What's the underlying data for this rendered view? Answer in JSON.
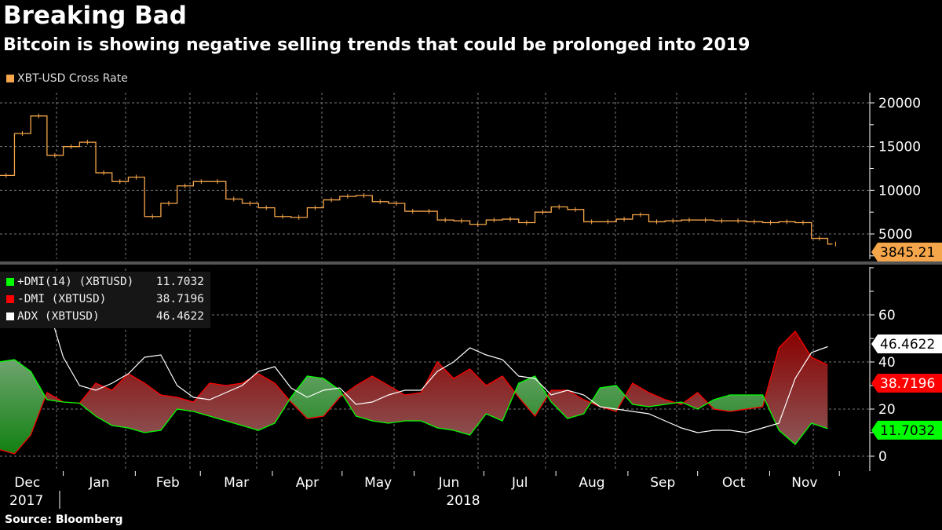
{
  "title": "Breaking Bad",
  "subtitle": "Bitcoin is showing negative selling trends that could be prolonged into 2019",
  "source": "Source: Bloomberg",
  "colors": {
    "price": "#f5a54a",
    "plus_dmi": "#00ff00",
    "minus_dmi": "#ff0000",
    "adx": "#ffffff",
    "background": "#000000"
  },
  "chart_data": [
    {
      "type": "line",
      "legend": "XBT-USD Cross Rate",
      "ylim": [
        3000,
        21000
      ],
      "yticks": [
        5000,
        10000,
        15000,
        20000
      ],
      "last_value_label": "3845.21",
      "grid": true,
      "x": [
        "2017-12-04",
        "2017-12-11",
        "2017-12-18",
        "2017-12-25",
        "2018-01-01",
        "2018-01-08",
        "2018-01-15",
        "2018-01-22",
        "2018-01-29",
        "2018-02-05",
        "2018-02-12",
        "2018-02-19",
        "2018-02-26",
        "2018-03-05",
        "2018-03-12",
        "2018-03-19",
        "2018-03-26",
        "2018-04-02",
        "2018-04-09",
        "2018-04-16",
        "2018-04-23",
        "2018-04-30",
        "2018-05-07",
        "2018-05-14",
        "2018-05-21",
        "2018-05-28",
        "2018-06-04",
        "2018-06-11",
        "2018-06-18",
        "2018-06-25",
        "2018-07-02",
        "2018-07-09",
        "2018-07-16",
        "2018-07-23",
        "2018-07-30",
        "2018-08-06",
        "2018-08-13",
        "2018-08-20",
        "2018-08-27",
        "2018-09-03",
        "2018-09-10",
        "2018-09-17",
        "2018-09-24",
        "2018-10-01",
        "2018-10-08",
        "2018-10-15",
        "2018-10-22",
        "2018-10-29",
        "2018-11-05",
        "2018-11-12",
        "2018-11-19",
        "2018-11-26"
      ],
      "values": [
        11700,
        16500,
        18500,
        14000,
        15000,
        15500,
        12000,
        11000,
        11500,
        7000,
        8500,
        10500,
        11000,
        11000,
        9000,
        8500,
        8000,
        7000,
        6900,
        8000,
        8900,
        9300,
        9400,
        8700,
        8500,
        7600,
        7600,
        6600,
        6500,
        6100,
        6600,
        6700,
        6300,
        7500,
        8100,
        7800,
        6400,
        6400,
        6700,
        7200,
        6400,
        6500,
        6600,
        6600,
        6500,
        6500,
        6400,
        6300,
        6400,
        6300,
        4500,
        3845.21
      ]
    },
    {
      "type": "area",
      "ylim": [
        -5,
        82
      ],
      "yticks": [
        0,
        20,
        40,
        60
      ],
      "grid": true,
      "legend_position": "top-left",
      "series": [
        {
          "name": "+DMI(14) (XBTUSD)",
          "last": "11.7032",
          "values": [
            40,
            41,
            36,
            24,
            23,
            22.5,
            17,
            13,
            12,
            10,
            11,
            20,
            19,
            17,
            15,
            13,
            11,
            14,
            25,
            34,
            33,
            28,
            17,
            15,
            14,
            15,
            15,
            12,
            11,
            9,
            18,
            15,
            31,
            34,
            23,
            16,
            18,
            29,
            30,
            22,
            21,
            22,
            23,
            20,
            24,
            26,
            26,
            26,
            11,
            5,
            14,
            11.7
          ]
        },
        {
          "name": "-DMI (XBTUSD)",
          "last": "38.7196",
          "values": [
            3,
            1,
            9,
            27,
            23,
            22.5,
            31,
            28,
            35,
            31,
            26,
            25,
            23,
            31,
            30,
            31,
            35,
            31,
            23,
            16,
            17,
            25,
            30,
            34,
            30,
            26,
            27,
            40,
            33,
            37,
            30,
            34,
            25,
            17,
            28,
            28,
            24,
            21,
            19,
            31,
            27,
            24,
            22,
            27,
            20,
            19,
            20,
            21,
            46,
            53,
            42,
            38.7
          ]
        },
        {
          "name": "ADX (XBTUSD)",
          "last": "46.4622",
          "values": [
            null,
            null,
            null,
            65,
            42,
            30,
            28,
            31,
            35,
            42,
            43,
            30,
            25,
            24,
            27,
            30,
            36,
            38,
            29,
            25,
            28,
            29,
            22,
            23,
            26,
            28,
            28,
            36,
            40,
            46,
            43,
            41,
            34,
            33,
            26,
            28,
            26,
            21,
            20,
            19,
            18,
            15,
            12,
            10,
            11,
            11,
            10,
            12,
            14,
            33,
            44,
            46.5
          ]
        }
      ]
    }
  ],
  "x_axis": {
    "months": [
      "Dec",
      "Jan",
      "Feb",
      "Mar",
      "Apr",
      "May",
      "Jun",
      "Jul",
      "Aug",
      "Sep",
      "Oct",
      "Nov"
    ],
    "years": [
      "2017",
      "2018"
    ]
  }
}
